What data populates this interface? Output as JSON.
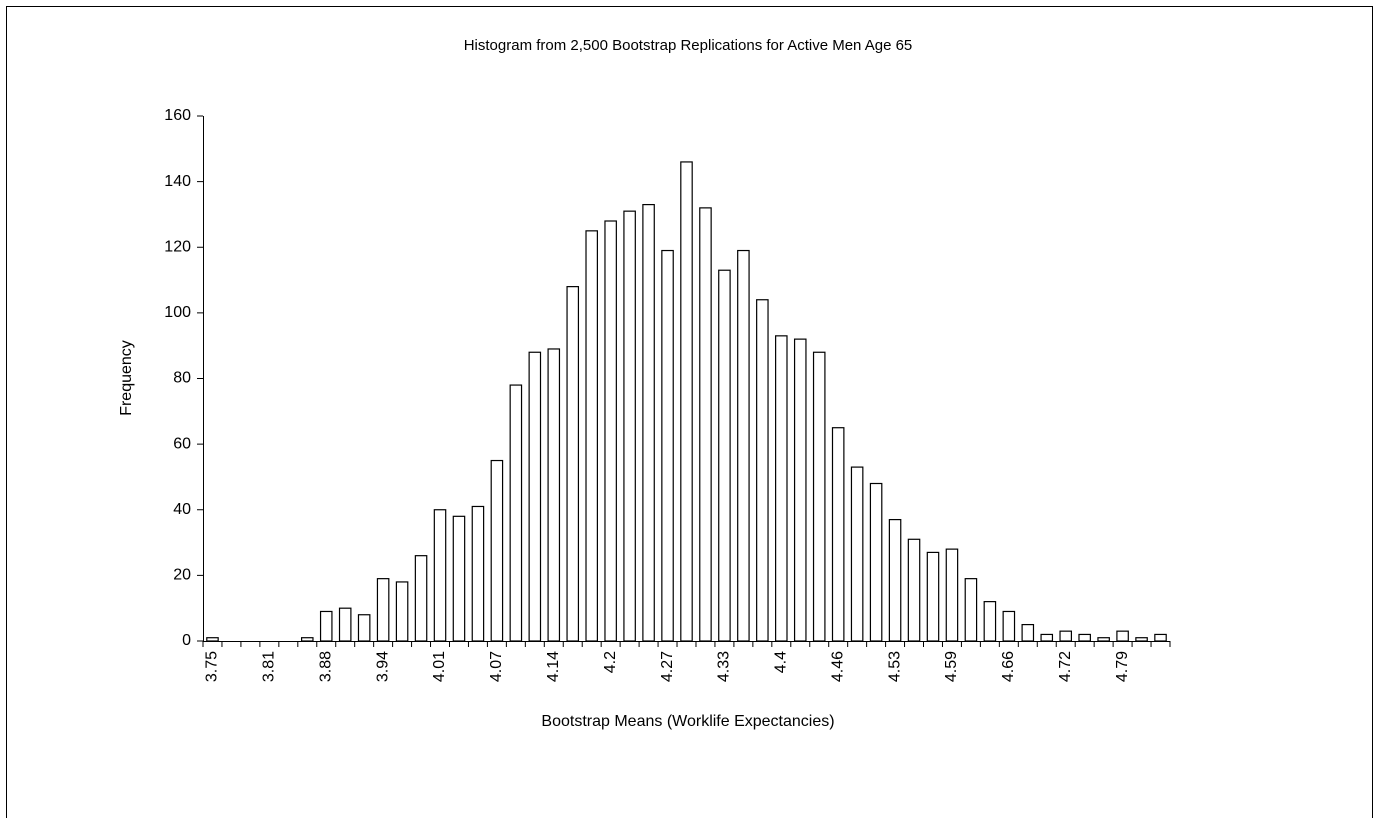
{
  "chart_data": {
    "type": "bar",
    "title": "Histogram from 2,500 Bootstrap Replications for Active Men Age 65",
    "x_label": "Bootstrap Means (Worklife Expectancies)",
    "y_label": "Frequency",
    "categories": [
      "3.75",
      null,
      null,
      "3.81",
      null,
      null,
      "3.88",
      null,
      null,
      "3.94",
      null,
      null,
      "4.01",
      null,
      null,
      "4.07",
      null,
      null,
      "4.14",
      null,
      null,
      "4.2",
      null,
      null,
      "4.27",
      null,
      null,
      "4.33",
      null,
      null,
      "4.4",
      null,
      null,
      "4.46",
      null,
      null,
      "4.53",
      null,
      null,
      "4.59",
      null,
      null,
      "4.66",
      null,
      null,
      "4.72",
      null,
      null,
      "4.79",
      null,
      null
    ],
    "values": [
      1,
      0,
      0,
      0,
      0,
      1,
      9,
      10,
      8,
      19,
      18,
      26,
      40,
      38,
      41,
      55,
      78,
      88,
      89,
      108,
      125,
      128,
      131,
      133,
      119,
      146,
      132,
      113,
      119,
      104,
      93,
      92,
      88,
      65,
      53,
      48,
      37,
      31,
      27,
      28,
      19,
      12,
      9,
      5,
      2,
      3,
      2,
      1,
      3,
      1,
      2
    ],
    "color": "#ffffff",
    "edge_color": "#000000",
    "ylim": [
      0,
      160
    ],
    "yticks": [
      0,
      20,
      40,
      60,
      80,
      100,
      120,
      140,
      160
    ],
    "grid": false
  }
}
